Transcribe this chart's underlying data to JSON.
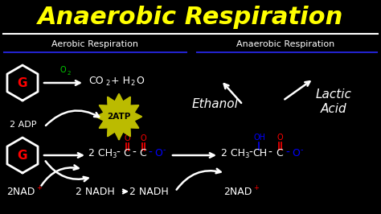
{
  "title": "Anaerobic Respiration",
  "title_color": "#FFFF00",
  "bg_color": "#000000",
  "left_header": "Aerobic Respiration",
  "right_header": "Anaerobic Respiration",
  "header_color": "#FFFFFF",
  "divider_color": "#2222CC",
  "fig_width": 4.74,
  "fig_height": 2.66,
  "dpi": 100
}
